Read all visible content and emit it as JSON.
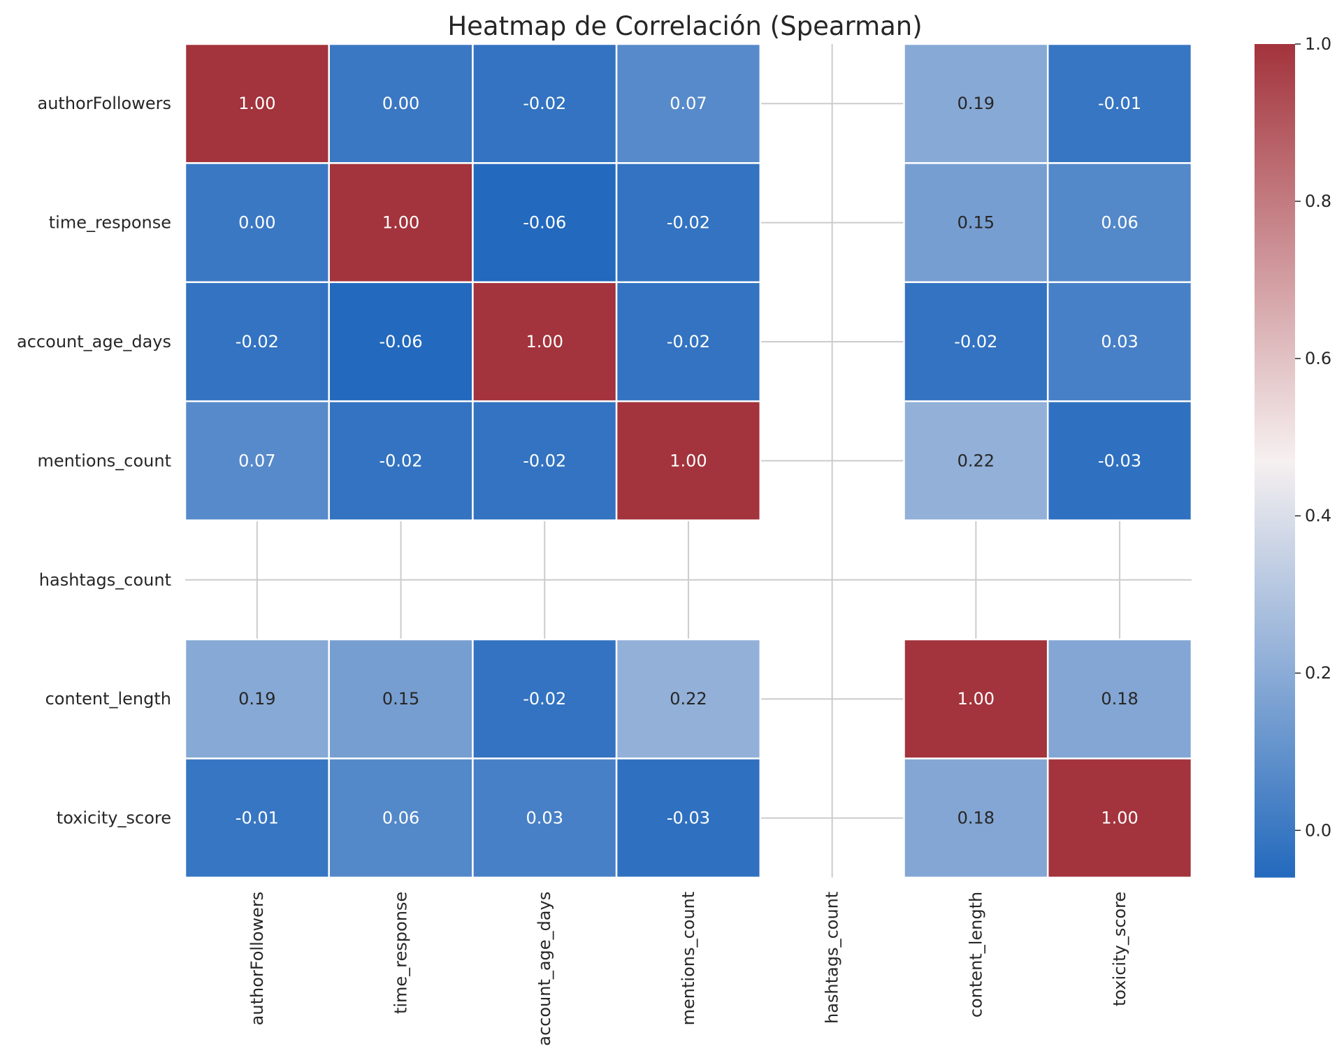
{
  "chart_data": {
    "type": "heatmap",
    "title": "Heatmap de Correlación (Spearman)",
    "xlabel": "",
    "ylabel": "",
    "rows": [
      "authorFollowers",
      "time_response",
      "account_age_days",
      "mentions_count",
      "hashtags_count",
      "content_length",
      "toxicity_score"
    ],
    "columns": [
      "authorFollowers",
      "time_response",
      "account_age_days",
      "mentions_count",
      "hashtags_count",
      "content_length",
      "toxicity_score"
    ],
    "values": [
      [
        1.0,
        -0.0,
        -0.02,
        0.07,
        null,
        0.19,
        -0.01
      ],
      [
        -0.0,
        1.0,
        -0.06,
        -0.02,
        null,
        0.15,
        0.06
      ],
      [
        -0.02,
        -0.06,
        1.0,
        -0.02,
        null,
        -0.02,
        0.03
      ],
      [
        0.07,
        -0.02,
        -0.02,
        1.0,
        null,
        0.22,
        -0.03
      ],
      [
        null,
        null,
        null,
        null,
        null,
        null,
        null
      ],
      [
        0.19,
        0.15,
        -0.02,
        0.22,
        null,
        1.0,
        0.18
      ],
      [
        -0.01,
        0.06,
        0.03,
        -0.03,
        null,
        0.18,
        1.0
      ]
    ],
    "value_format": "0.00",
    "colormap": "vlag",
    "vmin": -0.06,
    "vmax": 1.0,
    "colorbar_ticks": [
      0.0,
      0.2,
      0.4,
      0.6,
      0.8,
      1.0
    ],
    "colorbar_tick_labels": [
      "0.0",
      "0.2",
      "0.4",
      "0.6",
      "0.8",
      "1.0"
    ],
    "grid": true,
    "colors": {
      "low": "#2369bd",
      "mid": "#f6f0f0",
      "high": "#a3333c",
      "grid": "#cccccc",
      "cell_border": "#ffffff"
    }
  }
}
